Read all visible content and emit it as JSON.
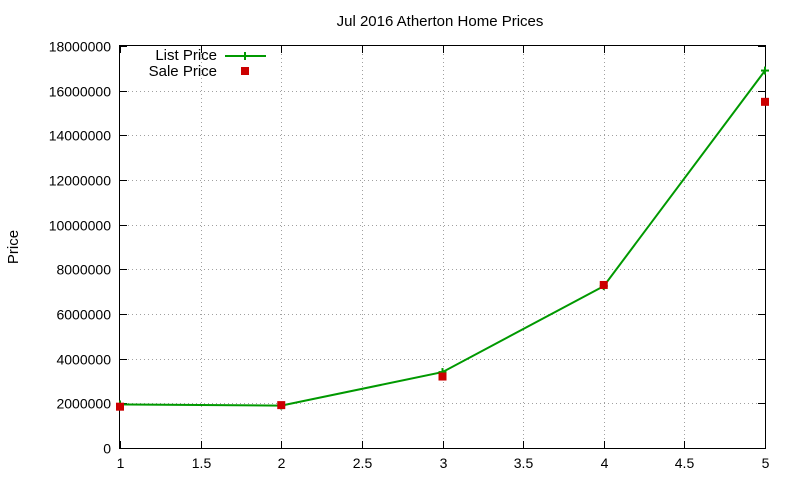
{
  "chart_data": {
    "type": "line",
    "title": "Jul 2016 Atherton Home Prices",
    "xlabel": "",
    "ylabel": "Price",
    "xlim": [
      1,
      5
    ],
    "ylim": [
      0,
      18000000
    ],
    "xticks": [
      1,
      1.5,
      2,
      2.5,
      3,
      3.5,
      4,
      4.5,
      5
    ],
    "xtick_labels": [
      "1",
      "1.5",
      "2",
      "2.5",
      "3",
      "3.5",
      "4",
      "4.5",
      "5"
    ],
    "yticks": [
      0,
      2000000,
      4000000,
      6000000,
      8000000,
      10000000,
      12000000,
      14000000,
      16000000,
      18000000
    ],
    "ytick_labels": [
      "0",
      "2000000",
      "4000000",
      "6000000",
      "8000000",
      "10000000",
      "12000000",
      "14000000",
      "16000000",
      "18000000"
    ],
    "grid": true,
    "legend_position": "top-left",
    "series": [
      {
        "name": "List Price",
        "style": "line-with-plus",
        "color": "#009900",
        "x": [
          1,
          2,
          3,
          4,
          5
        ],
        "y": [
          1950000,
          1900000,
          3400000,
          7250000,
          16900000
        ]
      },
      {
        "name": "Sale Price",
        "style": "square-points",
        "color": "#cc0000",
        "x": [
          1,
          2,
          3,
          4,
          5
        ],
        "y": [
          1850000,
          1920000,
          3200000,
          7300000,
          15500000
        ]
      }
    ]
  }
}
